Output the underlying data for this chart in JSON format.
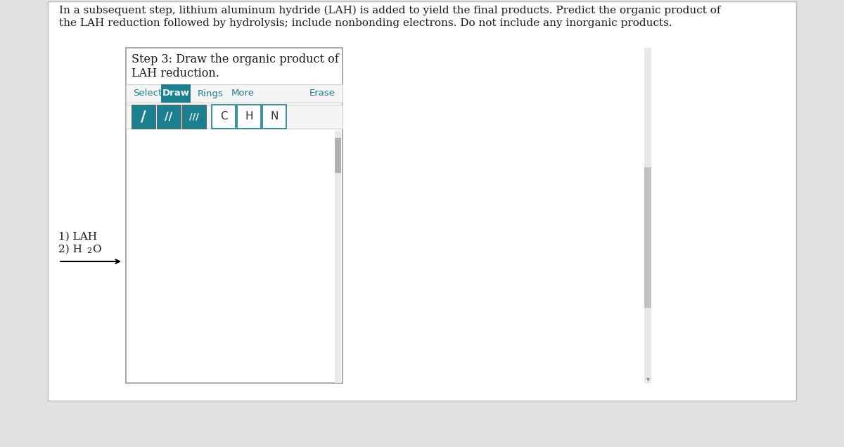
{
  "bg_color": "#e0e0e0",
  "page_bg": "#ffffff",
  "top_text_line1": "In a subsequent step, lithium aluminum hydride (LAH) is added to yield the final products. Predict the organic product of",
  "top_text_line2": "the LAH reduction followed by hydrolysis; include nonbonding electrons. Do not include any inorganic products.",
  "step_text_line1": "Step 3: Draw the organic product of",
  "step_text_line2": "LAH reduction.",
  "select_text": "Select",
  "draw_text": "Draw",
  "draw_bg": "#1a7f8e",
  "rings_text": "Rings",
  "more_text": "More",
  "erase_text": "Erase",
  "teal_color": "#1a7f8e",
  "atom_buttons": [
    "C",
    "H",
    "N"
  ],
  "lah_text": "1) LAH",
  "h2o_prefix": "2) H",
  "h2o_sub": "2",
  "h2o_suffix": "O"
}
